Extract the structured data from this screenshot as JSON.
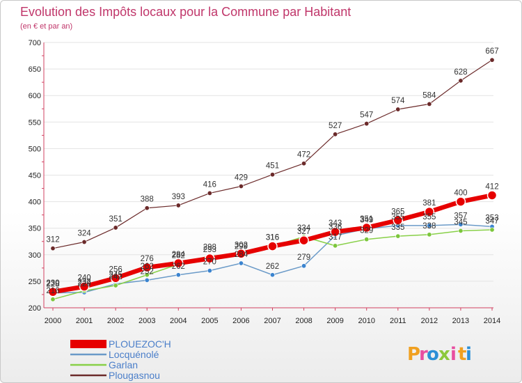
{
  "chart_data": {
    "type": "line",
    "title": "Evolution des Impôts locaux pour la Commune par Habitant",
    "subtitle": "(en € et par an)",
    "xlabel": "",
    "ylabel": "",
    "ylim": [
      200,
      700
    ],
    "yticks": [
      200,
      250,
      300,
      350,
      400,
      450,
      500,
      550,
      600,
      650,
      700
    ],
    "x": [
      "2000",
      "2001",
      "2002",
      "2003",
      "2004",
      "2005",
      "2006",
      "2007",
      "2008",
      "2009",
      "2010",
      "2011",
      "2012",
      "2013",
      "2014"
    ],
    "series": [
      {
        "name": "Plougasnou",
        "color": "#6b2a2a",
        "values": [
          312,
          324,
          351,
          388,
          393,
          416,
          429,
          451,
          472,
          527,
          547,
          574,
          584,
          628,
          667
        ]
      },
      {
        "name": "Locquénolé",
        "color": "#6a9ac8",
        "values": [
          228,
          229,
          245,
          252,
          262,
          270,
          284,
          262,
          279,
          336,
          349,
          355,
          355,
          357,
          353
        ]
      },
      {
        "name": "Garlan",
        "color": "#88d048",
        "values": [
          216,
          232,
          242,
          262,
          282,
          298,
          299,
          316,
          334,
          317,
          329,
          335,
          338,
          345,
          347
        ]
      },
      {
        "name": "PLOUEZOC'H",
        "color": "#e60000",
        "values": [
          230,
          240,
          256,
          276,
          284,
          293,
          302,
          316,
          327,
          343,
          351,
          365,
          381,
          400,
          412
        ]
      }
    ],
    "data_labels": [
      {
        "series": "Plougasnou",
        "values": [
          "312",
          "324",
          "351",
          "388",
          "393",
          "416",
          "429",
          "451",
          "472",
          "527",
          "547",
          "574",
          "584",
          "628",
          "667"
        ]
      },
      {
        "series": "Locquénolé",
        "values": [
          "228",
          "229",
          "245",
          "252",
          "262",
          "270",
          "284",
          "262",
          "279",
          "336",
          "349",
          "355",
          "355",
          "357",
          "353"
        ]
      },
      {
        "series": "Garlan",
        "values": [
          "216",
          "232",
          "242",
          "262",
          "282",
          "298",
          "299",
          "316",
          "334",
          "317",
          "329",
          "335",
          "338",
          "345",
          "347"
        ]
      },
      {
        "series": "PLOUEZOC'H",
        "values": [
          "230",
          "240",
          "256",
          "276",
          "284",
          "293",
          "302",
          "316",
          "327",
          "343",
          "351",
          "365",
          "381",
          "400",
          "412"
        ]
      }
    ],
    "legend": [
      "PLOUEZOC'H",
      "Locquénolé",
      "Garlan",
      "Plougasnou"
    ],
    "legend_position": "bottom-left"
  },
  "brand": {
    "letters": [
      "P",
      "r",
      "o",
      "x",
      "i",
      "t",
      "i"
    ]
  }
}
